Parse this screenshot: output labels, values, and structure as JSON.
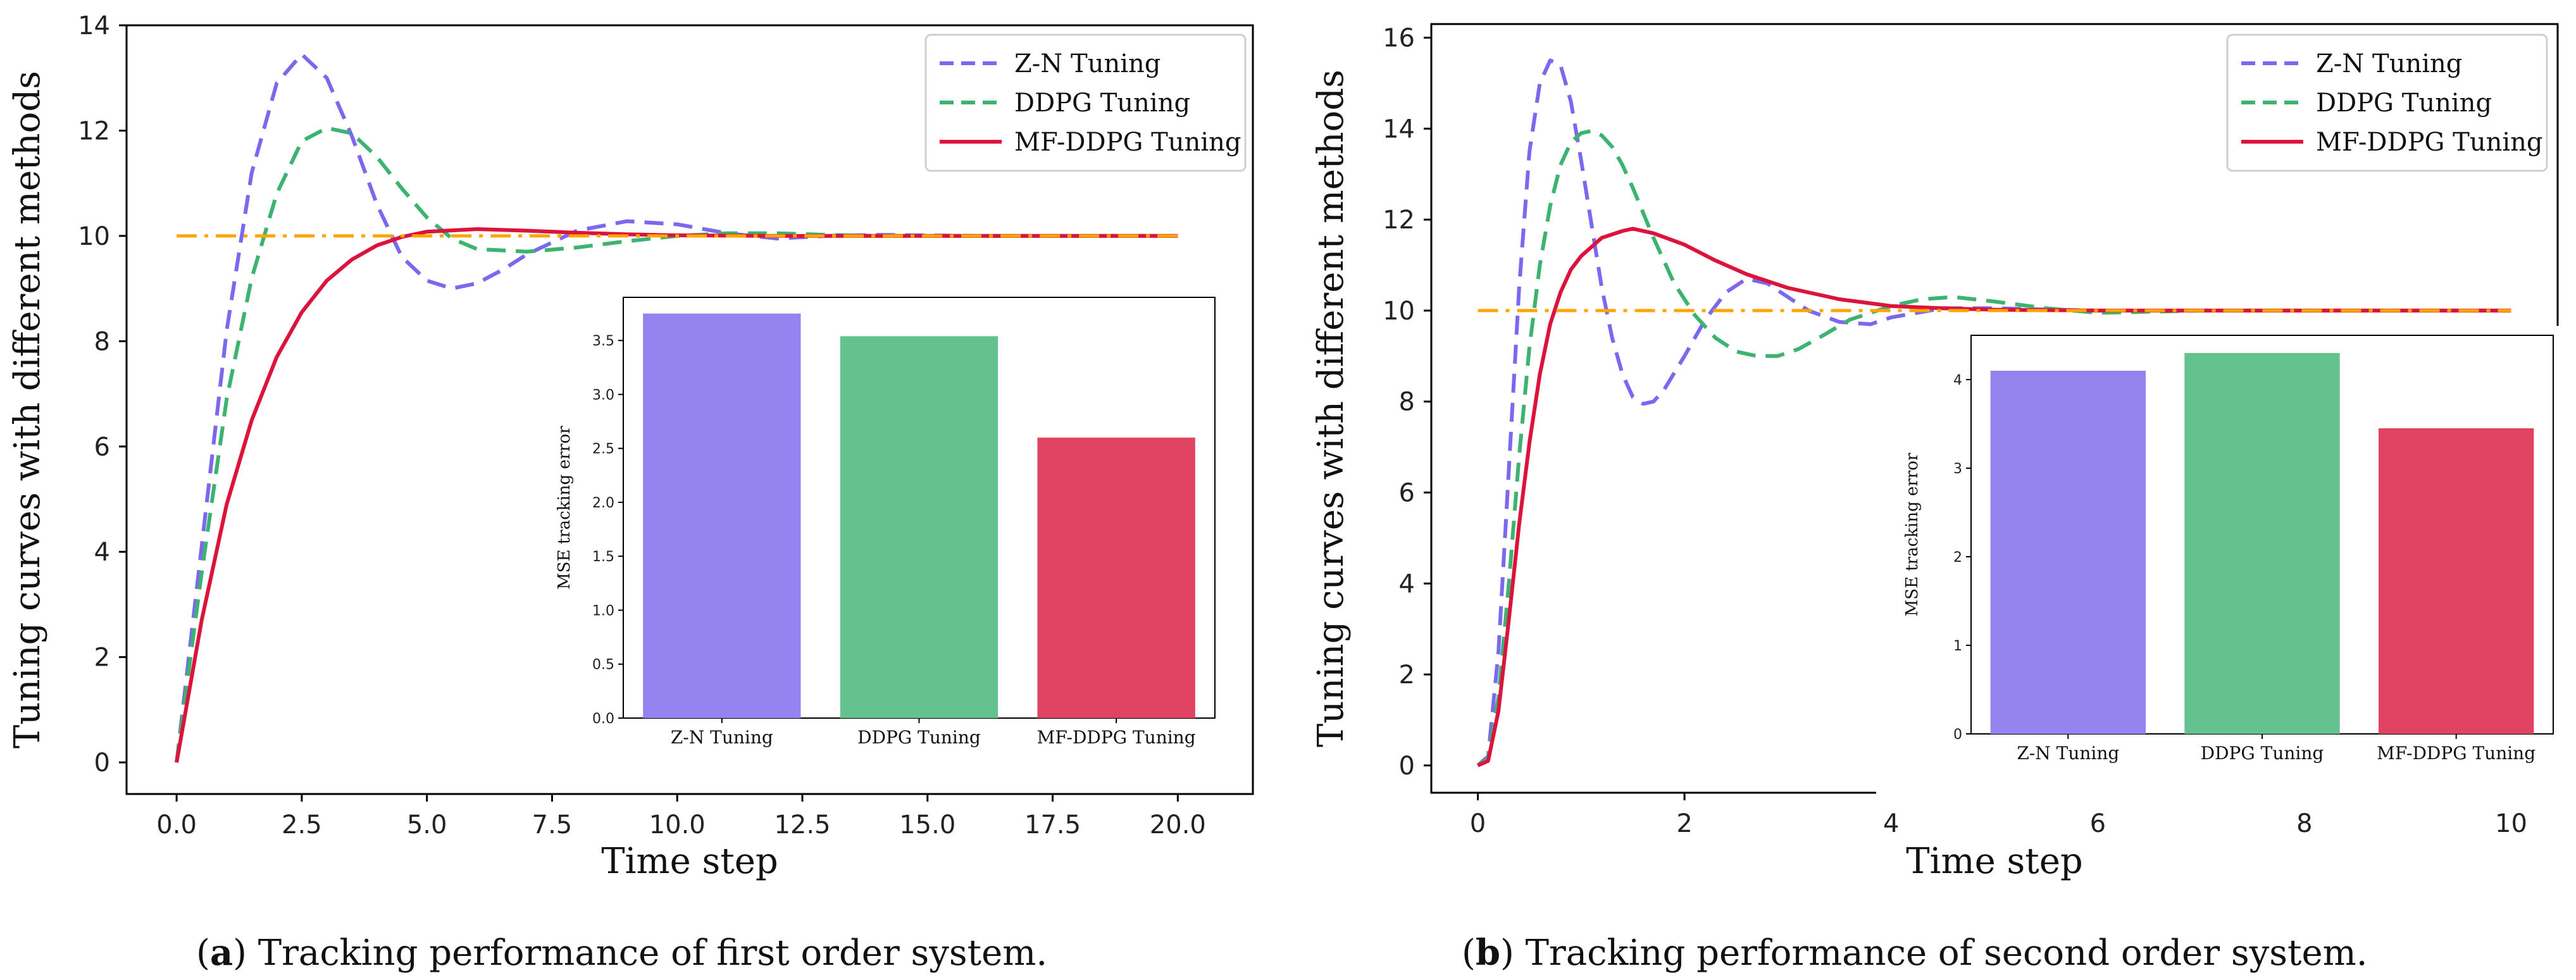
{
  "chart_data": [
    {
      "type": "line",
      "panel": "a",
      "xlabel": "Time step",
      "ylabel": "Tuning curves with different methods",
      "xlim": [
        -1,
        21.5
      ],
      "ylim": [
        -0.6,
        14
      ],
      "xticks": [
        0,
        2.5,
        5,
        7.5,
        10,
        12.5,
        15,
        17.5,
        20
      ],
      "xtick_labels": [
        "0.0",
        "2.5",
        "5.0",
        "7.5",
        "10.0",
        "12.5",
        "15.0",
        "17.5",
        "20.0"
      ],
      "yticks": [
        0,
        2,
        4,
        6,
        8,
        10,
        12,
        14
      ],
      "ytick_labels": [
        "0",
        "2",
        "4",
        "6",
        "8",
        "10",
        "12",
        "14"
      ],
      "setpoint": 10,
      "legend": [
        "Z-N Tuning",
        "DDPG Tuning",
        "MF-DDPG Tuning"
      ],
      "legend_position": "top-right",
      "series": [
        {
          "name": "Z-N Tuning",
          "color": "#7b68ee",
          "style": "dashed",
          "x": [
            0,
            0.5,
            1,
            1.5,
            2,
            2.5,
            3,
            3.5,
            4,
            4.5,
            5,
            5.5,
            6,
            6.5,
            7,
            8,
            9,
            10,
            11,
            12,
            13,
            14,
            16,
            18,
            20
          ],
          "y": [
            0,
            4.1,
            8.2,
            11.2,
            12.9,
            13.45,
            13.0,
            11.9,
            10.6,
            9.6,
            9.15,
            9.0,
            9.1,
            9.35,
            9.65,
            10.1,
            10.28,
            10.22,
            10.05,
            9.95,
            10.0,
            10.02,
            10.0,
            10.0,
            10.0
          ]
        },
        {
          "name": "DDPG Tuning",
          "color": "#3cb371",
          "style": "dashed",
          "x": [
            0,
            0.5,
            1,
            1.5,
            2,
            2.5,
            3,
            3.5,
            4,
            4.5,
            5,
            5.5,
            6,
            7,
            8,
            9,
            10,
            11,
            12,
            13,
            14,
            16,
            18,
            20
          ],
          "y": [
            0,
            3.6,
            6.9,
            9.2,
            10.8,
            11.8,
            12.05,
            11.95,
            11.5,
            10.9,
            10.35,
            9.95,
            9.75,
            9.7,
            9.78,
            9.9,
            10.0,
            10.05,
            10.05,
            10.02,
            10.0,
            10.0,
            10.0,
            10.0
          ]
        },
        {
          "name": "MF-DDPG Tuning",
          "color": "#dc143c",
          "style": "solid",
          "x": [
            0,
            0.5,
            1,
            1.5,
            2,
            2.5,
            3,
            3.5,
            4,
            4.5,
            5,
            6,
            7,
            8,
            9,
            10,
            12,
            14,
            16,
            18,
            20
          ],
          "y": [
            0,
            2.7,
            4.9,
            6.5,
            7.7,
            8.55,
            9.15,
            9.55,
            9.82,
            9.98,
            10.08,
            10.13,
            10.1,
            10.06,
            10.03,
            10.01,
            10.0,
            10.0,
            10.0,
            10.0,
            10.0
          ]
        },
        {
          "name": "Setpoint",
          "color": "#ffa500",
          "style": "dashdot",
          "x": [
            0,
            20
          ],
          "y": [
            10,
            10
          ]
        }
      ],
      "inset": {
        "type": "bar",
        "ylabel": "MSE tracking error",
        "categories": [
          "Z-N Tuning",
          "DDPG Tuning",
          "MF-DDPG Tuning"
        ],
        "values": [
          3.75,
          3.54,
          2.6
        ],
        "colors": [
          "#9584f0",
          "#63c28e",
          "#e04262"
        ],
        "ylim": [
          0,
          3.9
        ],
        "yticks": [
          0,
          0.5,
          1.0,
          1.5,
          2.0,
          2.5,
          3.0,
          3.5
        ],
        "ytick_labels": [
          "0.0",
          "0.5",
          "1.0",
          "1.5",
          "2.0",
          "2.5",
          "3.0",
          "3.5"
        ]
      },
      "caption_label": "a",
      "caption_text": ") Tracking performance of first order system."
    },
    {
      "type": "line",
      "panel": "b",
      "xlabel": "Time step",
      "ylabel": "Tuning curves with different methods",
      "xlim": [
        -0.45,
        10.45
      ],
      "ylim": [
        -0.6,
        16.3
      ],
      "xticks": [
        0,
        2,
        4,
        6,
        8,
        10
      ],
      "xtick_labels": [
        "0",
        "2",
        "4",
        "6",
        "8",
        "10"
      ],
      "yticks": [
        0,
        2,
        4,
        6,
        8,
        10,
        12,
        14,
        16
      ],
      "ytick_labels": [
        "0",
        "2",
        "4",
        "6",
        "8",
        "10",
        "12",
        "14",
        "16"
      ],
      "setpoint": 10,
      "legend": [
        "Z-N Tuning",
        "DDPG Tuning",
        "MF-DDPG Tuning"
      ],
      "legend_position": "top-right",
      "series": [
        {
          "name": "Z-N Tuning",
          "color": "#7b68ee",
          "style": "dashed",
          "x": [
            0,
            0.1,
            0.2,
            0.3,
            0.4,
            0.5,
            0.6,
            0.7,
            0.8,
            0.9,
            1.0,
            1.1,
            1.2,
            1.3,
            1.4,
            1.5,
            1.6,
            1.7,
            1.8,
            2.0,
            2.2,
            2.4,
            2.6,
            2.8,
            3.0,
            3.2,
            3.5,
            3.8,
            4.0,
            4.5,
            5.0,
            6.0,
            7.0,
            8.0,
            9.0,
            10.0
          ],
          "y": [
            0,
            0.2,
            2.5,
            6.5,
            10.5,
            13.5,
            15.0,
            15.5,
            15.4,
            14.6,
            13.3,
            11.9,
            10.5,
            9.4,
            8.6,
            8.1,
            7.95,
            8.0,
            8.25,
            9.0,
            9.8,
            10.4,
            10.7,
            10.6,
            10.3,
            10.0,
            9.75,
            9.7,
            9.85,
            10.05,
            10.05,
            10.0,
            10.0,
            10.0,
            10.0,
            10.0
          ]
        },
        {
          "name": "DDPG Tuning",
          "color": "#3cb371",
          "style": "dashed",
          "x": [
            0,
            0.1,
            0.2,
            0.3,
            0.4,
            0.5,
            0.6,
            0.7,
            0.8,
            0.9,
            1.0,
            1.1,
            1.2,
            1.3,
            1.4,
            1.5,
            1.7,
            1.9,
            2.1,
            2.3,
            2.5,
            2.7,
            2.9,
            3.1,
            3.3,
            3.6,
            4.0,
            4.3,
            4.6,
            5.0,
            5.5,
            6.0,
            7.0,
            8.0,
            10.0
          ],
          "y": [
            0,
            0.15,
            1.5,
            4.0,
            6.8,
            9.2,
            11.0,
            12.3,
            13.2,
            13.7,
            13.9,
            13.95,
            13.85,
            13.6,
            13.2,
            12.7,
            11.6,
            10.6,
            9.9,
            9.4,
            9.1,
            9.0,
            9.0,
            9.15,
            9.4,
            9.8,
            10.1,
            10.25,
            10.3,
            10.2,
            10.05,
            9.95,
            10.0,
            10.0,
            10.0
          ]
        },
        {
          "name": "MF-DDPG Tuning",
          "color": "#dc143c",
          "style": "solid",
          "x": [
            0,
            0.1,
            0.2,
            0.3,
            0.4,
            0.5,
            0.6,
            0.7,
            0.8,
            0.9,
            1.0,
            1.2,
            1.4,
            1.5,
            1.7,
            2.0,
            2.3,
            2.6,
            3.0,
            3.5,
            4.0,
            4.5,
            5.0,
            6.0,
            7.0,
            8.0,
            10.0
          ],
          "y": [
            0,
            0.1,
            1.2,
            3.2,
            5.3,
            7.1,
            8.6,
            9.7,
            10.4,
            10.9,
            11.2,
            11.6,
            11.75,
            11.8,
            11.7,
            11.45,
            11.1,
            10.8,
            10.5,
            10.25,
            10.1,
            10.05,
            10.02,
            10.0,
            10.0,
            10.0,
            10.0
          ]
        },
        {
          "name": "Setpoint",
          "color": "#ffa500",
          "style": "dashdot",
          "x": [
            0,
            10
          ],
          "y": [
            10,
            10
          ]
        }
      ],
      "inset": {
        "type": "bar",
        "ylabel": "MSE tracking error",
        "categories": [
          "Z-N Tuning",
          "DDPG Tuning",
          "MF-DDPG Tuning"
        ],
        "values": [
          4.1,
          4.3,
          3.45
        ],
        "colors": [
          "#9584f0",
          "#63c28e",
          "#e04262"
        ],
        "ylim": [
          0,
          4.5
        ],
        "yticks": [
          0,
          1,
          2,
          3,
          4
        ],
        "ytick_labels": [
          "0",
          "1",
          "2",
          "3",
          "4"
        ]
      },
      "caption_label": "b",
      "caption_text": ") Tracking performance of second order system."
    }
  ]
}
